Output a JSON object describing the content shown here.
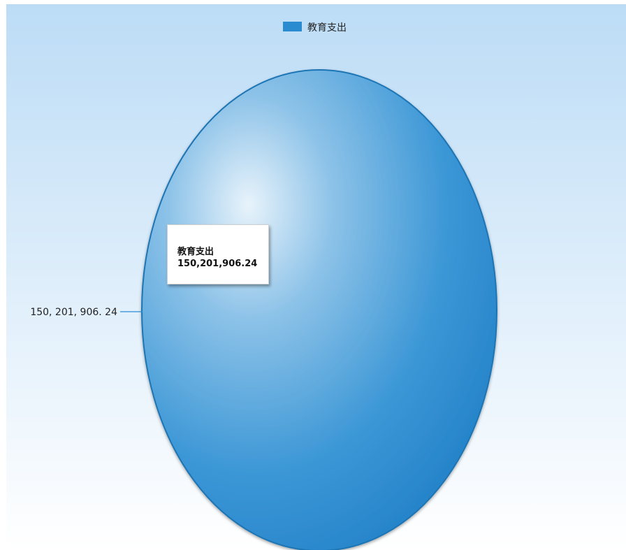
{
  "colors": {
    "series": "#2b8bd0",
    "background_top": "#bcdcf6",
    "background_bottom": "#ffffff"
  },
  "chart_data": {
    "type": "pie",
    "title": "",
    "legend_position": "top",
    "series": [
      {
        "name": "教育支出",
        "values": [
          150201906.24
        ],
        "value_label": "150,201,906.24",
        "color": "#2b8bd0"
      }
    ],
    "data_label_text": "150, 201, 906. 24",
    "tooltip": {
      "name": "教育支出",
      "value": "150,201,906.24"
    }
  }
}
